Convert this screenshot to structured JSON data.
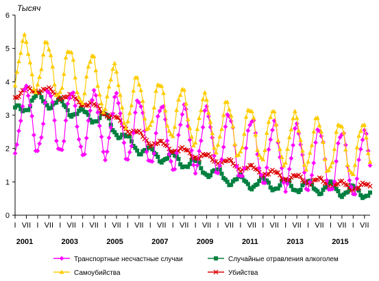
{
  "chart_data": {
    "type": "line",
    "unit_label": "Тысяч",
    "ylim": [
      0,
      6
    ],
    "y_ticks": [
      "0",
      "1",
      "2",
      "3",
      "4",
      "5",
      "6"
    ],
    "x_range": [
      "2001-01",
      "2016-10"
    ],
    "month_tick_labels": [
      "I",
      "VII"
    ],
    "year_labels": [
      "2001",
      "2003",
      "2005",
      "2007",
      "2009",
      "2011",
      "2013",
      "2015"
    ],
    "legend": {
      "layout": "2x2-below-plot",
      "entries": [
        {
          "name": "Транспортные несчастные случаи",
          "series": 0
        },
        {
          "name": "Случайные отравления алкоголем",
          "series": 1
        },
        {
          "name": "Самоубийства",
          "series": 2
        },
        {
          "name": "Убийства",
          "series": 3
        }
      ]
    },
    "series": [
      {
        "name": "Транспортные несчастные случаи",
        "color": "#ff00ff",
        "marker": "diamond",
        "model": {
          "level": [
            2.9,
            2.85,
            2.8,
            2.75,
            2.7,
            2.6,
            2.45,
            2.3,
            2.3,
            2.2,
            2.0,
            1.9,
            1.75,
            1.7,
            1.6,
            1.55
          ],
          "amplitude": 1.1,
          "peak_month": 7
        }
      },
      {
        "name": "Случайные отравления алкоголем",
        "color": "#008040",
        "marker": "square",
        "model": {
          "level": [
            3.1,
            3.5,
            3.3,
            3.0,
            2.9,
            2.2,
            1.85,
            1.7,
            1.5,
            1.2,
            1.0,
            0.95,
            0.9,
            0.85,
            0.8,
            0.7
          ],
          "amplitude": 0.2,
          "peak_month": 1
        }
      },
      {
        "name": "Самоубийства",
        "color": "#ffcc00",
        "marker": "triangle",
        "model": {
          "level": [
            4.6,
            4.5,
            4.3,
            4.1,
            3.9,
            3.4,
            3.3,
            3.1,
            2.9,
            2.7,
            2.5,
            2.4,
            2.3,
            2.2,
            2.05,
            1.95
          ],
          "amplitude": 0.9,
          "peak_month": 6
        }
      },
      {
        "name": "Убийства",
        "color": "#dd0000",
        "marker": "cross",
        "model": {
          "level": [
            3.6,
            3.8,
            3.6,
            3.4,
            3.1,
            2.6,
            2.2,
            2.0,
            1.8,
            1.65,
            1.45,
            1.3,
            1.15,
            1.05,
            0.95,
            0.85
          ],
          "amplitude": 0.12,
          "peak_month": 7
        }
      }
    ]
  }
}
